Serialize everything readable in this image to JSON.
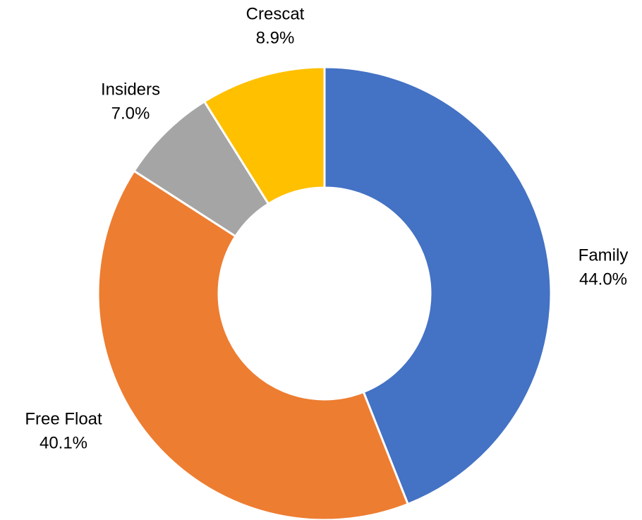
{
  "chart_data": {
    "type": "donut",
    "categories": [
      "Family",
      "Free Float",
      "Insiders",
      "Crescat"
    ],
    "values": [
      44.0,
      40.1,
      7.0,
      8.9
    ],
    "value_labels": [
      "44.0%",
      "40.1%",
      "7.0%",
      "8.9%"
    ],
    "colors": [
      "#4472c4",
      "#ed7d31",
      "#a5a5a5",
      "#ffc000"
    ]
  }
}
